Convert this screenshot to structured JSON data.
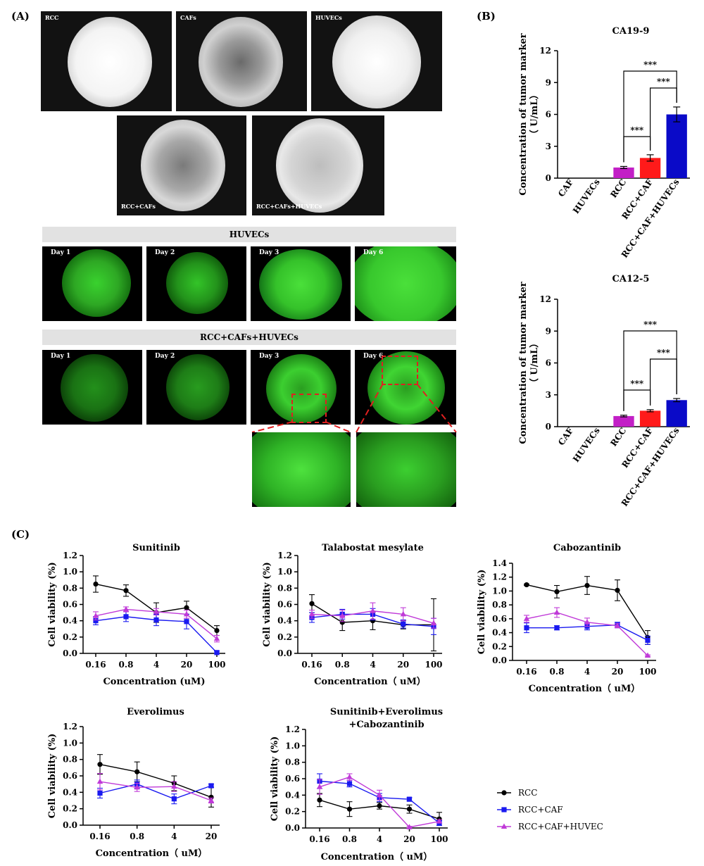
{
  "panels": {
    "a": "(A)",
    "b": "(B)",
    "c": "(C)"
  },
  "microscopy": {
    "rcc": "RCC",
    "cafs": "CAFs",
    "huvecs": "HUVECs",
    "rcc_cafs": "RCC+CAFs",
    "rcc_cafs_huvecs": "RCC+CAFs+HUVECs"
  },
  "fluorescence": {
    "group1_title": "HUVECs",
    "group2_title": "RCC+CAFs+HUVECs",
    "days": [
      "Day 1",
      "Day 2",
      "Day 3",
      "Day 6"
    ]
  },
  "colors": {
    "rcc": "#000000",
    "rcc_caf": "#1a1af0",
    "rcc_caf_huvec": "#c03ad8",
    "bar_rcc": "#c21fc6",
    "bar_rcc_caf": "#ff1a1a",
    "bar_rcc_caf_huvec": "#0a0ac8",
    "green": "#39d22e"
  },
  "legend": {
    "items": [
      "RCC",
      "RCC+CAF",
      "RCC+CAF+HUVEC"
    ]
  },
  "chart_data": [
    {
      "type": "bar",
      "title": "CA19-9",
      "ylabel": "Concentration of tumor marker",
      "ylabel2": "（ U/mL）",
      "categories": [
        "CAF",
        "HUVECs",
        "RCC",
        "RCC+CAF",
        "RCC+CAF+HUVECs"
      ],
      "values": [
        0,
        0,
        1.0,
        1.9,
        6.0
      ],
      "errors": [
        0,
        0,
        0.1,
        0.3,
        0.7
      ],
      "ylim": [
        0,
        12
      ],
      "yticks": [
        "0",
        "3",
        "6",
        "9",
        "12"
      ],
      "significance": [
        "***",
        "***",
        "***"
      ]
    },
    {
      "type": "bar",
      "title": "CA12-5",
      "ylabel": "Concentration of tumor marker",
      "ylabel2": "（ U/mL）",
      "categories": [
        "CAF",
        "HUVECs",
        "RCC",
        "RCC+CAF",
        "RCC+CAF+HUVECs"
      ],
      "values": [
        0,
        0,
        1.0,
        1.5,
        2.5
      ],
      "errors": [
        0,
        0,
        0.08,
        0.1,
        0.15
      ],
      "ylim": [
        0,
        12
      ],
      "yticks": [
        "0",
        "3",
        "6",
        "9",
        "12"
      ],
      "significance": [
        "***",
        "***",
        "***"
      ]
    },
    {
      "type": "line",
      "title": "Sunitinib",
      "xlabel": "Concentration (uM)",
      "ylabel": "Cell viability (%)",
      "categories": [
        "0.16",
        "0.8",
        "4",
        "20",
        "100"
      ],
      "ylim": [
        0,
        1.2
      ],
      "yticks": [
        "0.0",
        "0.2",
        "0.4",
        "0.6",
        "0.8",
        "1.0",
        "1.2"
      ],
      "series": [
        {
          "name": "RCC",
          "values": [
            0.85,
            0.77,
            0.5,
            0.56,
            0.28
          ],
          "errors": [
            0.1,
            0.07,
            0.12,
            0.08,
            0.06
          ]
        },
        {
          "name": "RCC+CAF",
          "values": [
            0.4,
            0.45,
            0.41,
            0.39,
            0.01
          ],
          "errors": [
            0.05,
            0.06,
            0.07,
            0.09,
            0.02
          ]
        },
        {
          "name": "RCC+CAF+HUVEC",
          "values": [
            0.46,
            0.54,
            0.51,
            0.48,
            0.18
          ],
          "errors": [
            0.05,
            0.03,
            0.04,
            0.05,
            0.04
          ]
        }
      ]
    },
    {
      "type": "line",
      "title": "Talabostat mesylate",
      "xlabel": "Concentration（ uM）",
      "ylabel": "Cell viability (%)",
      "categories": [
        "0.16",
        "0.8",
        "4",
        "20",
        "100"
      ],
      "ylim": [
        0,
        1.2
      ],
      "yticks": [
        "0.0",
        "0.2",
        "0.4",
        "0.6",
        "0.8",
        "1.0",
        "1.2"
      ],
      "series": [
        {
          "name": "RCC",
          "values": [
            0.61,
            0.38,
            0.4,
            0.35,
            0.35
          ],
          "errors": [
            0.11,
            0.1,
            0.11,
            0.05,
            0.32
          ]
        },
        {
          "name": "RCC+CAF",
          "values": [
            0.44,
            0.48,
            0.48,
            0.36,
            0.33
          ],
          "errors": [
            0.06,
            0.06,
            0.07,
            0.05,
            0.1
          ]
        },
        {
          "name": "RCC+CAF+HUVEC",
          "values": [
            0.48,
            0.46,
            0.52,
            0.48,
            0.37
          ],
          "errors": [
            0.05,
            0.07,
            0.1,
            0.08,
            0.06
          ]
        }
      ]
    },
    {
      "type": "line",
      "title": "Cabozantinib",
      "xlabel": "Concentration（ uM）",
      "ylabel": "Cell viability (%)",
      "categories": [
        "0.16",
        "0.8",
        "4",
        "20",
        "100"
      ],
      "ylim": [
        0,
        1.4
      ],
      "yticks": [
        "0.0",
        "0.2",
        "0.4",
        "0.6",
        "0.8",
        "1.0",
        "1.2",
        "1.4"
      ],
      "series": [
        {
          "name": "RCC",
          "values": [
            1.09,
            0.99,
            1.08,
            1.01,
            0.33
          ],
          "errors": [
            0.01,
            0.09,
            0.13,
            0.15,
            0.1
          ]
        },
        {
          "name": "RCC+CAF",
          "values": [
            0.47,
            0.47,
            0.49,
            0.51,
            0.29
          ],
          "errors": [
            0.07,
            0.03,
            0.05,
            0.04,
            0.06
          ]
        },
        {
          "name": "RCC+CAF+HUVEC",
          "values": [
            0.6,
            0.69,
            0.55,
            0.5,
            0.07
          ],
          "errors": [
            0.05,
            0.07,
            0.06,
            0.03,
            0.01
          ]
        }
      ]
    },
    {
      "type": "line",
      "title": "Everolimus",
      "xlabel": "Concentration（ uM）",
      "ylabel": "Cell viability (%)",
      "categories": [
        "0.16",
        "0.8",
        "4",
        "20"
      ],
      "ylim": [
        0,
        1.2
      ],
      "yticks": [
        "0.0",
        "0.2",
        "0.4",
        "0.6",
        "0.8",
        "1.0",
        "1.2"
      ],
      "series": [
        {
          "name": "RCC",
          "values": [
            0.74,
            0.65,
            0.51,
            0.34
          ],
          "errors": [
            0.12,
            0.12,
            0.09,
            0.12
          ]
        },
        {
          "name": "RCC+CAF",
          "values": [
            0.39,
            0.5,
            0.32,
            0.48
          ],
          "errors": [
            0.06,
            0.05,
            0.06,
            0.02
          ]
        },
        {
          "name": "RCC+CAF+HUVEC",
          "values": [
            0.53,
            0.46,
            0.47,
            0.3
          ],
          "errors": [
            0.1,
            0.05,
            0.06,
            0.03
          ]
        }
      ]
    },
    {
      "type": "line",
      "title": "Sunitinib+Everolimus",
      "title2": "+Cabozantinib",
      "xlabel": "Concentration（ uM）",
      "ylabel": "Cell viability (%)",
      "categories": [
        "0.16",
        "0.8",
        "4",
        "20",
        "100"
      ],
      "ylim": [
        0,
        1.2
      ],
      "yticks": [
        "0.0",
        "0.2",
        "0.4",
        "0.6",
        "0.8",
        "1.0",
        "1.2"
      ],
      "series": [
        {
          "name": "RCC",
          "values": [
            0.34,
            0.23,
            0.27,
            0.23,
            0.11
          ],
          "errors": [
            0.08,
            0.09,
            0.04,
            0.05,
            0.08
          ]
        },
        {
          "name": "RCC+CAF",
          "values": [
            0.57,
            0.54,
            0.37,
            0.35,
            0.06
          ],
          "errors": [
            0.09,
            0.04,
            0.05,
            0.02,
            0.03
          ]
        },
        {
          "name": "RCC+CAF+HUVEC",
          "values": [
            0.5,
            0.62,
            0.4,
            0.01,
            0.08
          ],
          "errors": [
            0.09,
            0.04,
            0.06,
            0.01,
            0.02
          ]
        }
      ]
    }
  ]
}
